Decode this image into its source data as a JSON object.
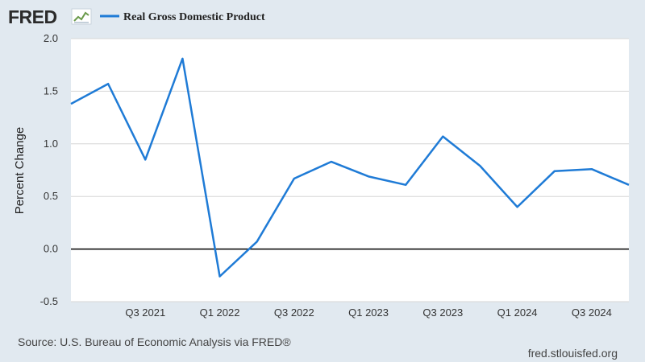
{
  "logo": {
    "text": "FRED"
  },
  "legend": {
    "label": "Real Gross Domestic Product",
    "color": "#1f7bd6"
  },
  "footer": {
    "source": "Source: U.S. Bureau of Economic Analysis via FRED®",
    "site": "fred.stlouisfed.org"
  },
  "chart_data": {
    "type": "line",
    "ylabel": "Percent Change",
    "ylim": [
      -0.5,
      2.0
    ],
    "y_ticks": [
      "2.0",
      "1.5",
      "1.0",
      "0.5",
      "0.0",
      "-0.5"
    ],
    "x_tick_labels": [
      "Q3 2021",
      "Q1 2022",
      "Q3 2022",
      "Q1 2023",
      "Q3 2023",
      "Q1 2024",
      "Q3 2024"
    ],
    "grid": true,
    "legend_position": "top",
    "series": [
      {
        "name": "Real Gross Domestic Product",
        "color": "#1f7bd6",
        "x": [
          "Q1 2021",
          "Q2 2021",
          "Q3 2021",
          "Q4 2021",
          "Q1 2022",
          "Q2 2022",
          "Q3 2022",
          "Q4 2022",
          "Q1 2023",
          "Q2 2023",
          "Q3 2023",
          "Q4 2023",
          "Q1 2024",
          "Q2 2024",
          "Q3 2024",
          "Q4 2024"
        ],
        "values": [
          1.38,
          1.57,
          0.85,
          1.81,
          -0.26,
          0.07,
          0.67,
          0.83,
          0.69,
          0.61,
          1.07,
          0.79,
          0.4,
          0.74,
          0.76,
          0.61
        ]
      }
    ]
  }
}
